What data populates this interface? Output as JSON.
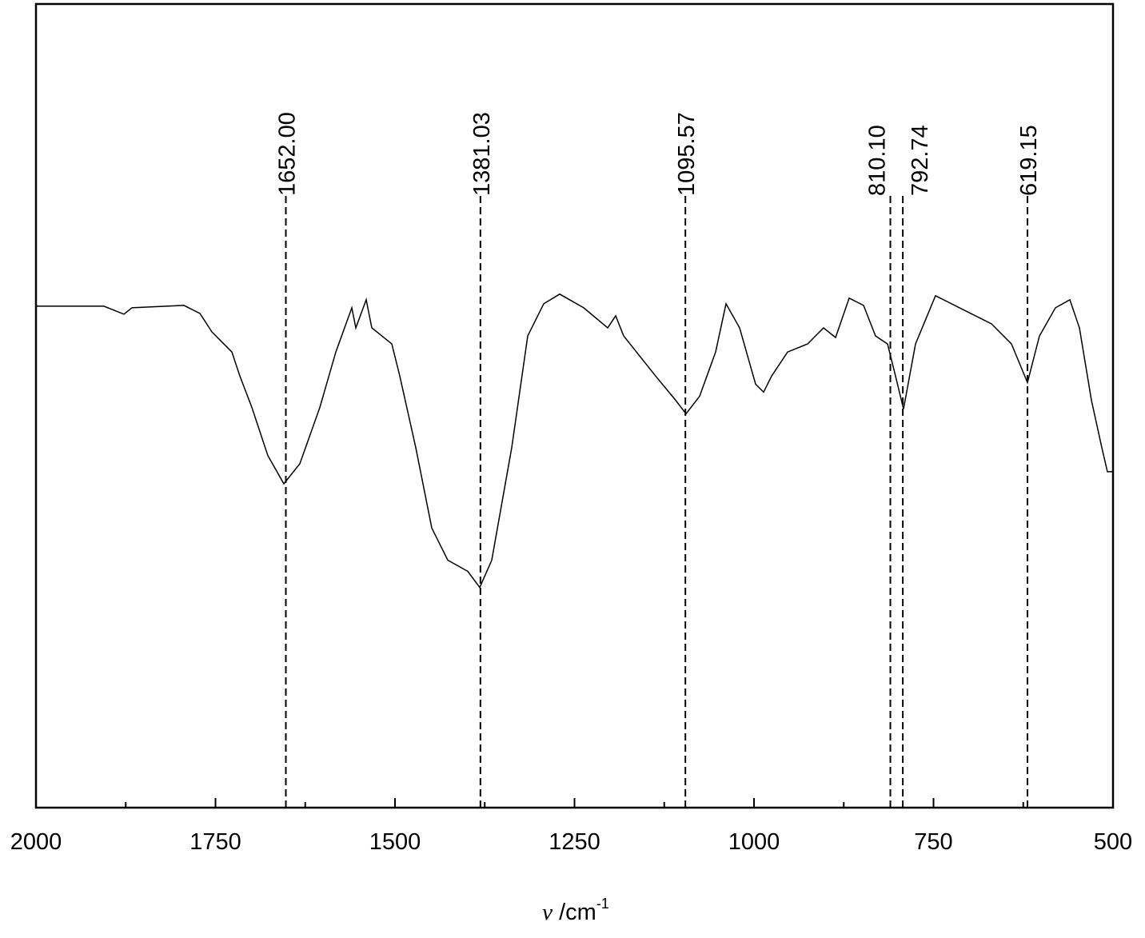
{
  "chart_data": {
    "type": "line",
    "x_label": {
      "symbol": "ν",
      "unit": " /cm",
      "exponent": "-1"
    },
    "x": [
      2000,
      1905.3,
      1877.5,
      1866.4,
      1794.0,
      1771.7,
      1755.0,
      1727.2,
      1716.0,
      1699.3,
      1677.1,
      1654.8,
      1632.5,
      1604.7,
      1582.4,
      1560.1,
      1554.6,
      1540.1,
      1532.3,
      1504.5,
      1493.3,
      1471.0,
      1448.8,
      1426.5,
      1398.7,
      1382.0,
      1365.3,
      1337.4,
      1315.1,
      1292.9,
      1270.6,
      1237.2,
      1203.8,
      1192.7,
      1181.5,
      1137.0,
      1109.1,
      1094.7,
      1075.7,
      1053.4,
      1039.0,
      1020.0,
      997.8,
      986.6,
      975.5,
      953.2,
      925.4,
      903.1,
      886.4,
      867.5,
      847.4,
      830.7,
      814.0,
      802.9,
      791.8,
      775.0,
      747.2,
      713.8,
      669.3,
      641.4,
      619.1,
      602.4,
      580.2,
      560.1,
      546.8,
      530.1,
      515.6,
      507.8,
      500
    ],
    "series": [
      {
        "color": "#000000",
        "values": [
          62.4,
          62.4,
          61.4,
          62.2,
          62.5,
          61.5,
          59.2,
          56.7,
          53.7,
          49.8,
          43.8,
          40.3,
          42.8,
          49.8,
          56.7,
          62.2,
          59.7,
          63.2,
          59.7,
          57.7,
          53.7,
          44.8,
          34.8,
          30.8,
          29.4,
          27.4,
          30.8,
          44.8,
          58.7,
          62.7,
          63.9,
          62.2,
          59.7,
          61.2,
          58.7,
          53.7,
          50.7,
          49.0,
          51.2,
          56.7,
          62.7,
          59.7,
          52.7,
          51.7,
          53.7,
          56.7,
          57.7,
          59.7,
          58.5,
          63.4,
          62.5,
          58.7,
          57.7,
          53.7,
          49.6,
          57.7,
          63.7,
          62.2,
          60.2,
          57.7,
          52.9,
          58.7,
          62.2,
          63.2,
          59.7,
          50.7,
          44.8,
          41.8,
          41.8
        ]
      }
    ],
    "xlim": [
      2000,
      500
    ],
    "ylim": [
      0,
      100
    ],
    "xticks": [
      2000,
      1750,
      1500,
      1250,
      1000,
      750,
      500
    ],
    "xminorticks": [
      1875,
      1625,
      1375,
      1125,
      875,
      625
    ],
    "annotations": [
      {
        "value": 1652,
        "label": "1652.00"
      },
      {
        "value": 1381.03,
        "label": "1381.03"
      },
      {
        "value": 1095.57,
        "label": "1095.57"
      },
      {
        "value": 810.1,
        "label": "810.10"
      },
      {
        "value": 792.74,
        "label": "792.74"
      },
      {
        "value": 619.15,
        "label": "619.15"
      }
    ]
  }
}
